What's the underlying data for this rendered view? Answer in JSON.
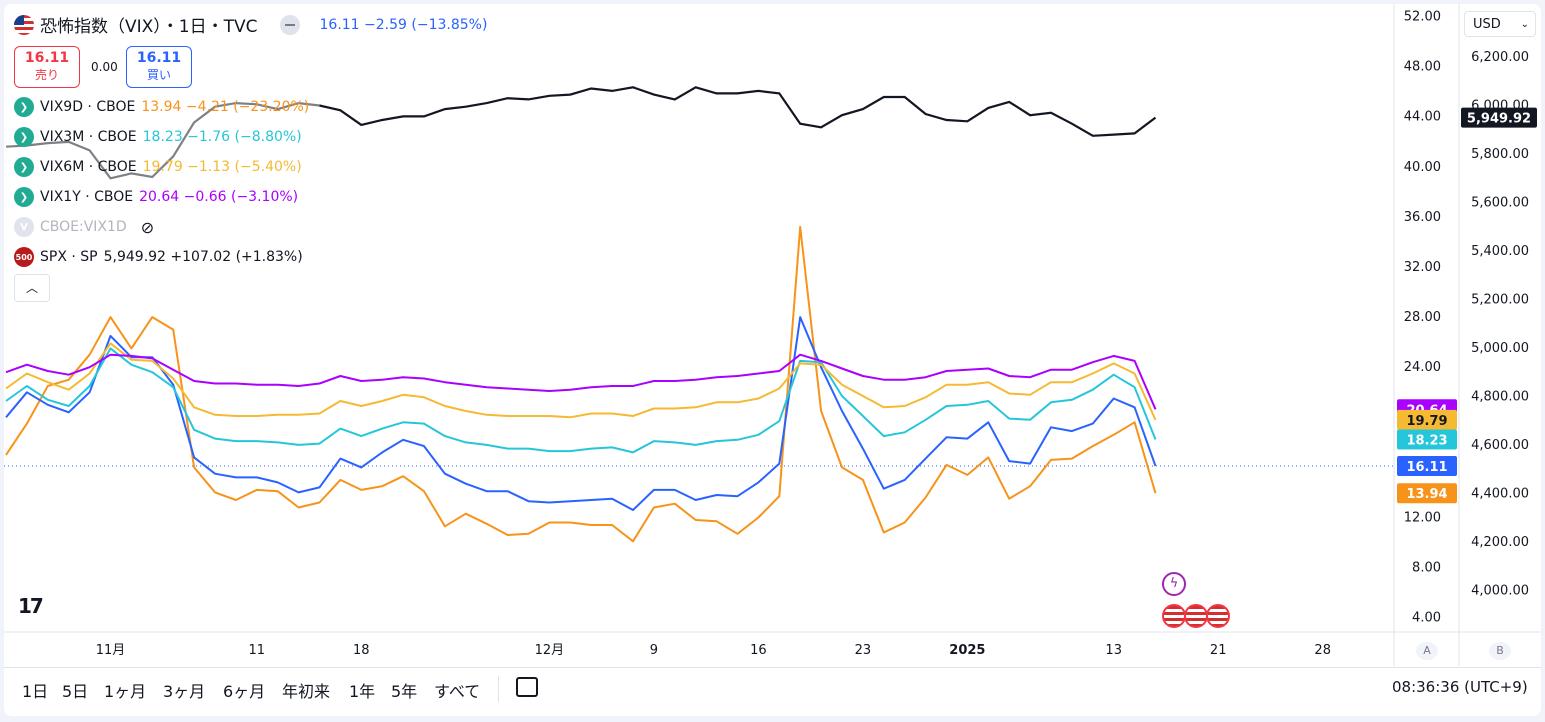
{
  "header": {
    "title": "恐怖指数（VIX）・1日・TVC",
    "price_change": "16.11 −2.59 (−13.85%)",
    "sell_price": "16.11",
    "sell_label": "売り",
    "spread": "0.00",
    "buy_price": "16.11",
    "buy_label": "買い"
  },
  "legend": [
    {
      "symbol": "VIX9D · CBOE",
      "values": "13.94 −4.21 (−23.20%)",
      "color": "#f7931a"
    },
    {
      "symbol": "VIX3M · CBOE",
      "values": "18.23 −1.76 (−8.80%)",
      "color": "#26c6da"
    },
    {
      "symbol": "VIX6M · CBOE",
      "values": "19.79 −1.13 (−5.40%)",
      "color": "#f5b932"
    },
    {
      "symbol": "VIX1Y · CBOE",
      "values": "20.64 −0.66 (−3.10%)",
      "color": "#aa00ff"
    },
    {
      "symbol": "CBOE:VIX1D",
      "values": "",
      "color": "#b2b5be"
    },
    {
      "symbol": "SPX · SP",
      "values": "5,949.92 +107.02 (+1.83%)",
      "color": "#131722"
    }
  ],
  "toolbar": {
    "currency": "USD",
    "timeframes": [
      "1日",
      "5日",
      "1ヶ月",
      "3ヶ月",
      "6ヶ月",
      "年初来",
      "1年",
      "5年",
      "すべて"
    ],
    "clock": "08:36:36 (UTC+9)",
    "scale_a": "A",
    "scale_b": "B"
  },
  "chart_data": {
    "type": "line",
    "x_tick_labels": [
      "11月",
      "11",
      "18",
      "12月",
      "9",
      "16",
      "23",
      "2025",
      "13",
      "21",
      "28"
    ],
    "x_tick_index": [
      5,
      12,
      17,
      26,
      31,
      36,
      41,
      46,
      53,
      58,
      63
    ],
    "left_axis": {
      "ticks": [
        "52.00",
        "48.00",
        "44.00",
        "40.00",
        "36.00",
        "32.00",
        "28.00",
        "24.00",
        "12.00",
        "8.00",
        "4.00"
      ],
      "range": [
        4,
        52
      ]
    },
    "right_axis": {
      "ticks": [
        "6,200.00",
        "6,000.00",
        "5,800.00",
        "5,600.00",
        "5,400.00",
        "5,200.00",
        "5,000.00",
        "4,800.00",
        "4,600.00",
        "4,400.00",
        "4,200.00",
        "4,000.00"
      ],
      "range": [
        3950,
        6300
      ]
    },
    "series": [
      {
        "name": "VIX9D",
        "color": "#f7931a",
        "last": "13.94",
        "values": [
          17,
          19.5,
          22.5,
          23,
          25,
          28,
          25.5,
          28,
          27,
          16,
          14,
          13.4,
          14.2,
          14.1,
          12.8,
          13.2,
          15,
          14.2,
          14.5,
          15.3,
          14.1,
          11.3,
          12.3,
          11.5,
          10.6,
          10.7,
          11.6,
          11.6,
          11.4,
          11.4,
          10.1,
          12.8,
          13.1,
          11.8,
          11.7,
          10.7,
          12,
          13.7,
          35.2,
          20.5,
          16,
          15,
          10.8,
          11.6,
          13.6,
          16.2,
          15.4,
          16.8,
          13.5,
          14.5,
          16.6,
          16.7,
          17.7,
          18.6,
          19.6,
          13.94
        ]
      },
      {
        "name": "VIX",
        "color": "#2962ff",
        "last": "16.11",
        "values": [
          20,
          22,
          21,
          20.4,
          22,
          26.5,
          24.8,
          24.8,
          22.6,
          16.8,
          15.5,
          15.2,
          15.2,
          14.8,
          14,
          14.4,
          16.7,
          16,
          17.2,
          18.2,
          17.7,
          15.5,
          14.7,
          14.1,
          14.1,
          13.3,
          13.2,
          13.3,
          13.4,
          13.5,
          12.6,
          14.2,
          14.2,
          13.4,
          13.8,
          13.7,
          14.8,
          16.3,
          28,
          24,
          20.5,
          17.5,
          14.3,
          15,
          16.7,
          18.4,
          18.3,
          19.6,
          16.5,
          16.3,
          19.2,
          18.9,
          19.5,
          21.5,
          20.8,
          16.11
        ]
      },
      {
        "name": "VIX3M",
        "color": "#26c6da",
        "last": "18.23",
        "values": [
          21.3,
          22.5,
          21.4,
          20.9,
          22.5,
          25.5,
          24.2,
          23.6,
          22.4,
          19,
          18.3,
          18.1,
          18.1,
          18,
          17.8,
          17.9,
          19.1,
          18.5,
          19.1,
          19.6,
          19.5,
          18.5,
          18,
          17.8,
          17.5,
          17.5,
          17.3,
          17.3,
          17.5,
          17.6,
          17.2,
          18.1,
          18,
          17.8,
          18.1,
          18.2,
          18.6,
          19.7,
          24.5,
          24.4,
          21.7,
          20.1,
          18.5,
          18.8,
          19.8,
          20.9,
          21,
          21.3,
          19.9,
          19.8,
          21.2,
          21.4,
          22.2,
          23.4,
          22.4,
          18.23
        ]
      },
      {
        "name": "VIX6M",
        "color": "#f5b932",
        "last": "19.79",
        "values": [
          22.3,
          23.5,
          22.8,
          22.2,
          23.5,
          25.9,
          24.6,
          24.5,
          23.1,
          20.8,
          20.2,
          20.1,
          20.1,
          20.2,
          20.2,
          20.3,
          21.3,
          20.9,
          21.3,
          21.8,
          21.6,
          20.9,
          20.5,
          20.2,
          20.1,
          20.1,
          20.1,
          20,
          20.3,
          20.3,
          20.1,
          20.7,
          20.7,
          20.8,
          21.2,
          21.2,
          21.5,
          22.3,
          24.3,
          24.2,
          22.6,
          21.7,
          20.8,
          20.9,
          21.6,
          22.6,
          22.6,
          22.8,
          21.9,
          21.8,
          22.8,
          22.8,
          23.5,
          24.3,
          23.5,
          19.79
        ]
      },
      {
        "name": "VIX1Y",
        "color": "#aa00ff",
        "last": "20.64",
        "values": [
          23.6,
          24.2,
          23.7,
          23.4,
          24,
          25,
          24.9,
          24.7,
          23.8,
          22.9,
          22.7,
          22.7,
          22.6,
          22.6,
          22.5,
          22.7,
          23.3,
          22.9,
          23,
          23.2,
          23.1,
          22.8,
          22.6,
          22.4,
          22.3,
          22.2,
          22.1,
          22.2,
          22.4,
          22.5,
          22.5,
          22.9,
          22.9,
          23,
          23.2,
          23.3,
          23.5,
          23.7,
          25,
          24.5,
          23.9,
          23.3,
          23,
          23,
          23.2,
          23.7,
          23.8,
          23.9,
          23.3,
          23.2,
          23.8,
          23.8,
          24.4,
          24.9,
          24.5,
          20.64
        ]
      },
      {
        "name": "SPX",
        "color": "#131722",
        "last": "5,949.92",
        "values": [
          5830,
          5835,
          5845,
          5850,
          5815,
          5700,
          5720,
          5705,
          5790,
          5930,
          5995,
          6010,
          6005,
          5985,
          6010,
          6000,
          5980,
          5920,
          5940,
          5955,
          5955,
          5985,
          5995,
          6010,
          6030,
          6025,
          6040,
          6045,
          6070,
          6060,
          6075,
          6045,
          6025,
          6075,
          6050,
          6050,
          6060,
          6050,
          5925,
          5910,
          5960,
          5985,
          6035,
          6035,
          5965,
          5940,
          5935,
          5990,
          6015,
          5960,
          5970,
          5925,
          5875,
          5880,
          5885,
          5949.92
        ]
      }
    ]
  }
}
